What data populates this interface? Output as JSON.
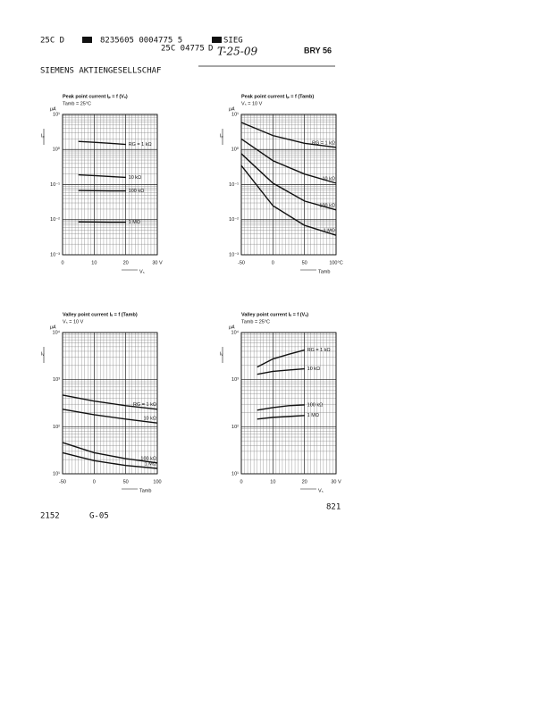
{
  "header": {
    "code1": "25C D",
    "code2": "8235605 0004775 5",
    "code3": "SIEG",
    "code4": "25C 04775",
    "code5": "D",
    "handwritten": "T-25-09",
    "part": "BRY 56",
    "company": "SIEMENS AKTIENGESELLSCHAF"
  },
  "chart_data": [
    {
      "type": "line",
      "title": "Peak point current Iₚ = f (Vₛ)",
      "subtitle": "Tamb = 25°C",
      "y_unit": "μA",
      "y_label": "Iₚ",
      "x_label": "Vₛ",
      "x": [
        5,
        10,
        15,
        20
      ],
      "log_y": true,
      "grid": true,
      "color": "#111111",
      "series": [
        {
          "name": "RG = 1 kΩ",
          "values": [
            1.7,
            1.6,
            1.5,
            1.4
          ]
        },
        {
          "name": "10 kΩ",
          "values": [
            0.19,
            0.18,
            0.17,
            0.16
          ]
        },
        {
          "name": "100 kΩ",
          "values": [
            0.068,
            0.067,
            0.066,
            0.066
          ]
        },
        {
          "name": "1 MΩ",
          "values": [
            0.0087,
            0.0086,
            0.0085,
            0.0085
          ]
        }
      ],
      "xlim": [
        0,
        30
      ],
      "xticks": [
        0,
        10,
        20,
        {
          "value": 30,
          "label": "30 V"
        }
      ],
      "ylim": [
        0.001,
        10
      ],
      "yticks": [
        {
          "value": 10,
          "label": "10¹"
        },
        {
          "value": 1,
          "label": "10⁰"
        },
        {
          "value": 0.1,
          "label": "10⁻¹"
        },
        {
          "value": 0.01,
          "label": "10⁻²"
        },
        {
          "value": 0.001,
          "label": "10⁻³"
        }
      ]
    },
    {
      "type": "line",
      "title": "Peak point current Iₚ = f (Tamb)",
      "subtitle": "Vₛ = 10 V",
      "y_unit": "μA",
      "y_label": "Iₚ",
      "x_label": "Tamb",
      "x": [
        -50,
        0,
        50,
        100
      ],
      "log_y": true,
      "grid": true,
      "color": "#111111",
      "series": [
        {
          "name": "RG = 1 kΩ",
          "values": [
            5.9,
            2.5,
            1.5,
            1.15
          ]
        },
        {
          "name": "10 kΩ",
          "values": [
            2.0,
            0.48,
            0.2,
            0.11
          ]
        },
        {
          "name": "100 kΩ",
          "values": [
            0.76,
            0.11,
            0.034,
            0.019
          ]
        },
        {
          "name": "1 MΩ",
          "values": [
            0.35,
            0.025,
            0.0069,
            0.0036
          ]
        }
      ],
      "xlim": [
        -50,
        100
      ],
      "xticks": [
        -50,
        0,
        50,
        {
          "value": 100,
          "label": "100°C"
        }
      ],
      "ylim": [
        0.001,
        10
      ],
      "yticks": [
        {
          "value": 10,
          "label": "10¹"
        },
        {
          "value": 1,
          "label": "10⁰"
        },
        {
          "value": 0.1,
          "label": "10⁻¹"
        },
        {
          "value": 0.01,
          "label": "10⁻²"
        },
        {
          "value": 0.001,
          "label": "10⁻³"
        }
      ]
    },
    {
      "type": "line",
      "title": "Valley point current Iᵥ = f (Tamb)",
      "subtitle": "Vₛ = 10 V",
      "y_unit": "μA",
      "y_label": "Iᵥ",
      "x_label": "Tamb",
      "x": [
        -50,
        0,
        50,
        100
      ],
      "log_y": true,
      "grid": true,
      "color": "#111111",
      "series": [
        {
          "name": "RG = 1 kΩ",
          "values": [
            470,
            350,
            280,
            235
          ]
        },
        {
          "name": "10 kΩ",
          "values": [
            235,
            180,
            145,
            120
          ]
        },
        {
          "name": "100 kΩ",
          "values": [
            46,
            28,
            21,
            17
          ]
        },
        {
          "name": "1 MΩ",
          "values": [
            28,
            19,
            15,
            13
          ]
        }
      ],
      "xlim": [
        -50,
        100
      ],
      "xticks": [
        -50,
        0,
        50,
        100
      ],
      "ylim": [
        10,
        10000
      ],
      "yticks": [
        {
          "value": 10000,
          "label": "10⁴"
        },
        {
          "value": 1000,
          "label": "10³"
        },
        {
          "value": 100,
          "label": "10²"
        },
        {
          "value": 10,
          "label": "10¹"
        }
      ]
    },
    {
      "type": "line",
      "title": "Valley point current Iᵥ = f (Vₛ)",
      "subtitle": "Tamb = 25°C",
      "y_unit": "μA",
      "y_label": "Iᵥ",
      "x_label": "Vₛ",
      "x": [
        5,
        10,
        15,
        20
      ],
      "log_y": true,
      "grid": true,
      "color": "#111111",
      "series": [
        {
          "name": "RG = 1 kΩ",
          "values": [
            1850,
            2750,
            3450,
            4250
          ]
        },
        {
          "name": "10 kΩ",
          "values": [
            1300,
            1500,
            1600,
            1700
          ]
        },
        {
          "name": "100 kΩ",
          "values": [
            225,
            255,
            280,
            290
          ]
        },
        {
          "name": "1 MΩ",
          "values": [
            145,
            158,
            165,
            173
          ]
        }
      ],
      "xlim": [
        0,
        30
      ],
      "xticks": [
        0,
        10,
        20,
        {
          "value": 30,
          "label": "30 V"
        }
      ],
      "ylim": [
        10,
        10000
      ],
      "yticks": [
        {
          "value": 10000,
          "label": "10⁴"
        },
        {
          "value": 1000,
          "label": "10³"
        },
        {
          "value": 100,
          "label": "10²"
        },
        {
          "value": 10,
          "label": "10¹"
        }
      ]
    }
  ],
  "footer": {
    "left": "2152",
    "middle": "G-05",
    "page": "821"
  }
}
